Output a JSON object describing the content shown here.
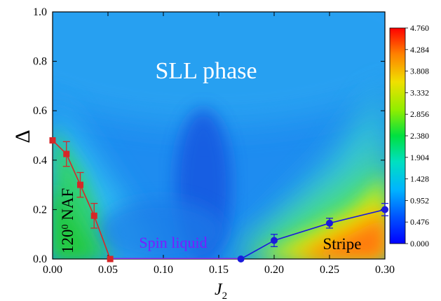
{
  "chart_data": {
    "type": "heatmap",
    "title": "",
    "xlabel": "J",
    "xlabel_subscript": "2",
    "ylabel": "Δ",
    "xlim": [
      0.0,
      0.3
    ],
    "ylim": [
      0.0,
      1.0
    ],
    "x_ticks": [
      "0.00",
      "0.05",
      "0.10",
      "0.15",
      "0.20",
      "0.25",
      "0.30"
    ],
    "y_ticks": [
      "0.0",
      "0.2",
      "0.4",
      "0.6",
      "0.8",
      "1.0"
    ],
    "colorbar": {
      "min": 0.0,
      "max": 4.76,
      "ticks": [
        "4.760",
        "4.284",
        "3.808",
        "3.332",
        "2.856",
        "2.380",
        "1.904",
        "1.428",
        "0.952",
        "0.476",
        "0.000"
      ]
    },
    "annotations": {
      "sll": "SLL phase",
      "naf_base": "120",
      "naf_sup": "0",
      "naf_rest": " NAF",
      "spin_liquid": "Spin liquid",
      "stripe": "Stripe"
    },
    "series": [
      {
        "color": "#d62728",
        "marker": "square",
        "x": [
          0.0,
          0.0125,
          0.025,
          0.0375,
          0.052
        ],
        "y": [
          0.48,
          0.425,
          0.3,
          0.175,
          0.0
        ],
        "err": [
          0.0,
          0.05,
          0.05,
          0.05,
          0.0
        ]
      },
      {
        "color": "#1a1adb",
        "marker": "circle",
        "x": [
          0.17,
          0.2,
          0.25,
          0.3
        ],
        "y": [
          0.0,
          0.075,
          0.145,
          0.2
        ],
        "err": [
          0.0,
          0.025,
          0.02,
          0.025
        ]
      },
      {
        "color": "#8a2be2",
        "marker": "none",
        "x": [
          0.052,
          0.17
        ],
        "y": [
          0.0,
          0.0
        ],
        "err": [
          0.0,
          0.0
        ]
      }
    ]
  }
}
